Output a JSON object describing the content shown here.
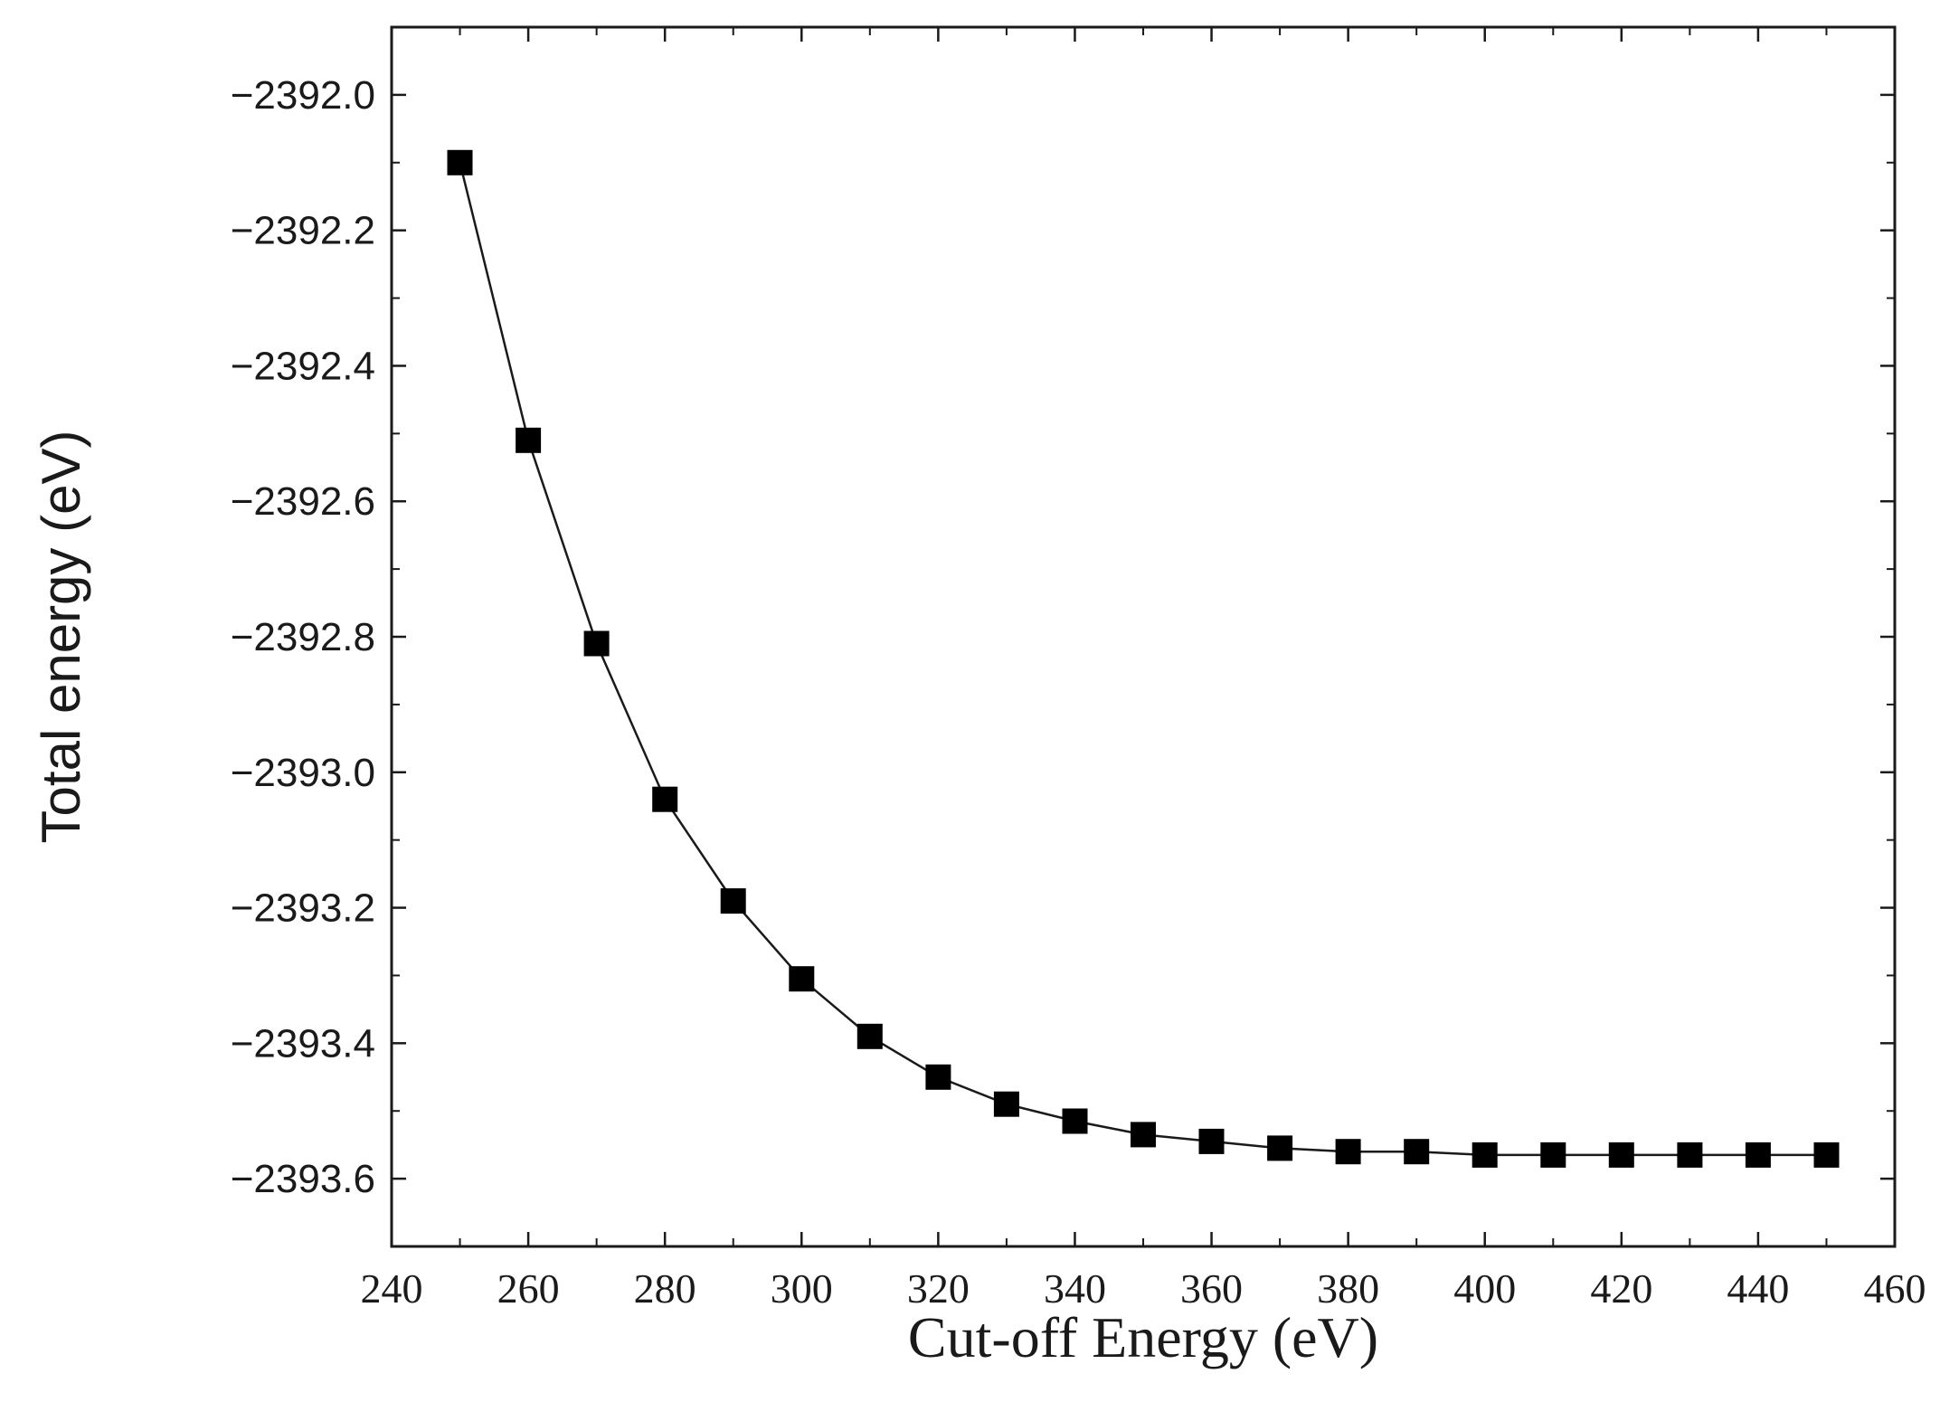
{
  "chart_data": {
    "type": "line",
    "title": "",
    "xlabel": "Cut-off Energy (eV)",
    "ylabel": "Total energy (eV)",
    "xlim": [
      240,
      460
    ],
    "ylim": [
      -2393.7,
      -2391.9
    ],
    "xticks": [
      240,
      260,
      280,
      300,
      320,
      340,
      360,
      380,
      400,
      420,
      440,
      460
    ],
    "xtick_labels": [
      "240",
      "260",
      "280",
      "300",
      "320",
      "340",
      "360",
      "380",
      "400",
      "420",
      "440",
      "460"
    ],
    "yticks": [
      -2392.0,
      -2392.2,
      -2392.4,
      -2392.6,
      -2392.8,
      -2393.0,
      -2393.2,
      -2393.4,
      -2393.6
    ],
    "ytick_labels": [
      "−2392.0",
      "−2392.2",
      "−2392.4",
      "−2392.6",
      "−2392.8",
      "−2393.0",
      "−2393.2",
      "−2393.4",
      "−2393.6"
    ],
    "grid": false,
    "legend": null,
    "series": [
      {
        "name": "Total energy",
        "marker": "square",
        "color": "#000000",
        "x": [
          250,
          260,
          270,
          280,
          290,
          300,
          310,
          320,
          330,
          340,
          350,
          360,
          370,
          380,
          390,
          400,
          410,
          420,
          430,
          440,
          450
        ],
        "y": [
          -2392.1,
          -2392.51,
          -2392.81,
          -2393.04,
          -2393.19,
          -2393.305,
          -2393.39,
          -2393.45,
          -2393.49,
          -2393.515,
          -2393.535,
          -2393.545,
          -2393.555,
          -2393.56,
          -2393.56,
          -2393.565,
          -2393.565,
          -2393.565,
          -2393.565,
          -2393.565,
          -2393.565
        ]
      }
    ]
  }
}
